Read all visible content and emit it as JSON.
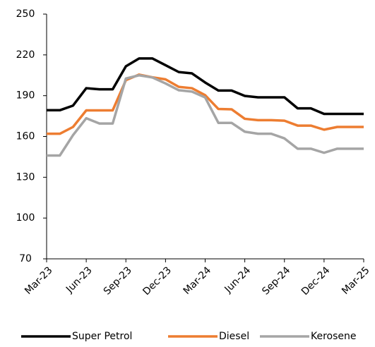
{
  "chart_data": {
    "type": "line",
    "categories": [
      "Mar-23",
      null,
      null,
      "Jun-23",
      null,
      null,
      "Sep-23",
      null,
      null,
      "Dec-23",
      null,
      null,
      "Mar-24",
      null,
      null,
      "Jun-24",
      null,
      null,
      "Sep-24",
      null,
      null,
      "Dec-24",
      null,
      null,
      "Mar-25"
    ],
    "series": [
      {
        "name": "Super Petrol",
        "color": "#000000",
        "values": [
          179.3,
          179.3,
          182.7,
          195.5,
          194.7,
          194.7,
          211.6,
          217.4,
          217.4,
          212.4,
          207.4,
          206.4,
          199.7,
          193.8,
          193.8,
          189.8,
          188.8,
          188.8,
          188.8,
          180.7,
          180.7,
          176.6,
          176.6,
          176.6,
          176.6
        ]
      },
      {
        "name": "Diesel",
        "color": "#ed7d31",
        "values": [
          162,
          162,
          167,
          179.2,
          179.2,
          179.2,
          201.4,
          205.5,
          203.5,
          202,
          196.5,
          195.5,
          190.4,
          180.2,
          180,
          173,
          172,
          172,
          171.6,
          168,
          168,
          165,
          167,
          167,
          167
        ]
      },
      {
        "name": "Kerosene",
        "color": "#a5a5a5",
        "values": [
          146,
          146,
          161,
          173.4,
          169.5,
          169.5,
          202.6,
          205,
          203.4,
          199,
          194,
          193,
          188.7,
          170,
          170,
          163.5,
          162,
          162,
          158.6,
          151,
          151,
          148,
          151,
          151,
          151
        ]
      }
    ],
    "ylim": [
      70,
      250
    ],
    "yticks": [
      70,
      100,
      130,
      160,
      190,
      220,
      250
    ],
    "legend": "bottom"
  }
}
